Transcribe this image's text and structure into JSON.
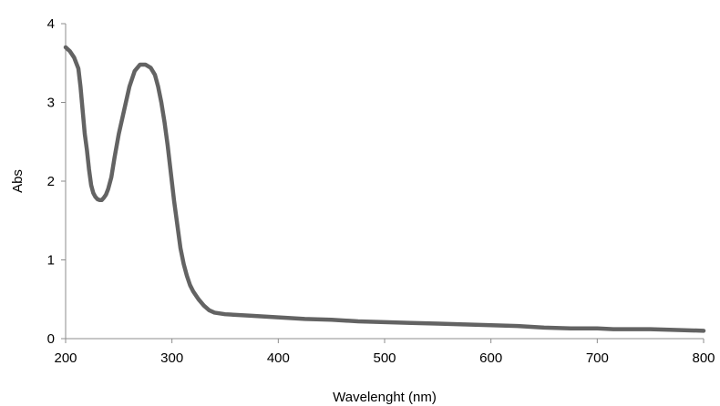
{
  "chart_data": {
    "type": "line",
    "xlabel": "Wavelenght (nm)",
    "ylabel": "Abs",
    "xlim": [
      200,
      800
    ],
    "ylim": [
      0,
      4
    ],
    "xticks": [
      "200",
      "300",
      "400",
      "500",
      "600",
      "700",
      "800"
    ],
    "yticks": [
      "0",
      "1",
      "2",
      "3",
      "4"
    ],
    "grid": false,
    "legend": "none",
    "line_color": "#636363",
    "series": [
      {
        "x": [
          200,
          204,
          208,
          212,
          214,
          216,
          218,
          220,
          222,
          224,
          226,
          228,
          230,
          232,
          234,
          236,
          238,
          240,
          243,
          246,
          250,
          255,
          260,
          265,
          270,
          275,
          280,
          284,
          287,
          290,
          293,
          296,
          299,
          302,
          305,
          308,
          311,
          314,
          317,
          320,
          325,
          330,
          335,
          340,
          350,
          375,
          400,
          425,
          450,
          475,
          500,
          525,
          550,
          575,
          600,
          625,
          650,
          675,
          700,
          715,
          725,
          750,
          775,
          800
        ],
        "y": [
          3.7,
          3.65,
          3.57,
          3.43,
          3.2,
          2.9,
          2.6,
          2.4,
          2.15,
          1.95,
          1.85,
          1.8,
          1.77,
          1.76,
          1.76,
          1.79,
          1.83,
          1.9,
          2.05,
          2.3,
          2.6,
          2.9,
          3.2,
          3.4,
          3.48,
          3.48,
          3.44,
          3.35,
          3.2,
          3.0,
          2.75,
          2.45,
          2.1,
          1.75,
          1.45,
          1.15,
          0.95,
          0.8,
          0.68,
          0.6,
          0.5,
          0.42,
          0.36,
          0.33,
          0.31,
          0.29,
          0.27,
          0.25,
          0.24,
          0.22,
          0.21,
          0.2,
          0.19,
          0.18,
          0.17,
          0.16,
          0.14,
          0.13,
          0.13,
          0.12,
          0.12,
          0.12,
          0.11,
          0.1
        ]
      }
    ]
  }
}
